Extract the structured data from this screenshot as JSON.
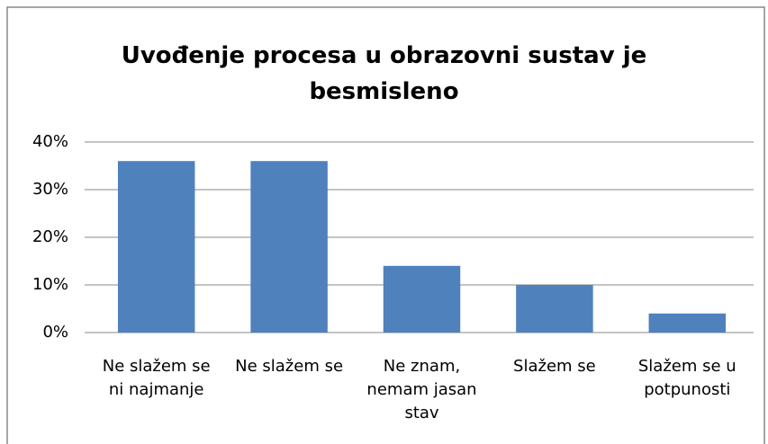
{
  "chart_data": {
    "type": "bar",
    "title": "Uvođenje procesa u obrazovni sustav je besmisleno",
    "categories": [
      "Ne slažem se ni najmanje",
      "Ne slažem se",
      "Ne znam, nemam jasan stav",
      "Slažem se",
      "Slažem se u potpunosti"
    ],
    "values": [
      36,
      36,
      14,
      10,
      4
    ],
    "color": "#4f81bd",
    "ylim": [
      0,
      40
    ],
    "yticks": [
      {
        "value": 0,
        "label": "0%"
      },
      {
        "value": 10,
        "label": "10%"
      },
      {
        "value": 20,
        "label": "20%"
      },
      {
        "value": 30,
        "label": "30%"
      },
      {
        "value": 40,
        "label": "40%"
      }
    ],
    "grid": true
  }
}
